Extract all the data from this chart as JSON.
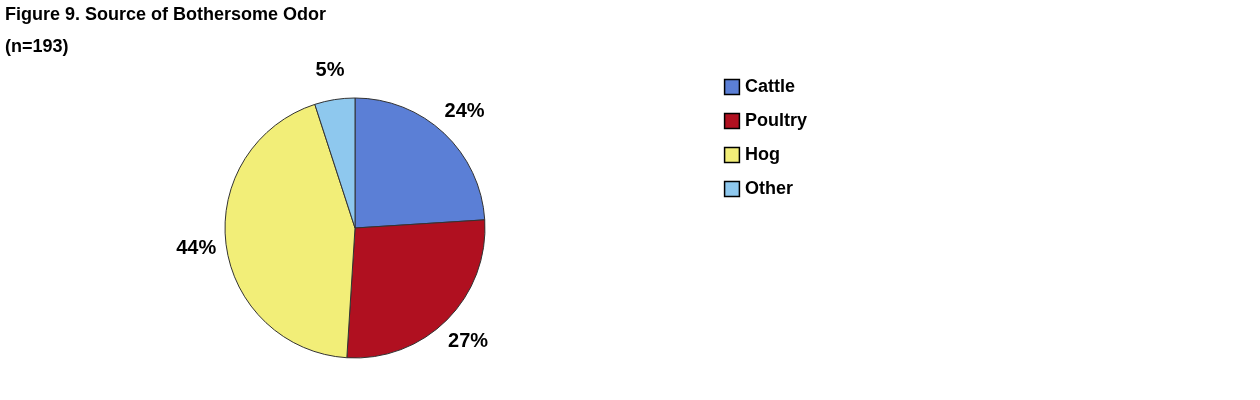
{
  "chart_data": {
    "type": "pie",
    "title": "Figure 9.  Source of Bothersome Odor",
    "subtitle": "(n=193)",
    "categories": [
      "Cattle",
      "Poultry",
      "Hog",
      "Other"
    ],
    "values": [
      24,
      27,
      44,
      5
    ],
    "colors": [
      "#5b7fd6",
      "#b01020",
      "#f2ee78",
      "#8ec8ee"
    ],
    "value_labels": [
      "24%",
      "27%",
      "44%",
      "5%"
    ],
    "legend": "right"
  }
}
